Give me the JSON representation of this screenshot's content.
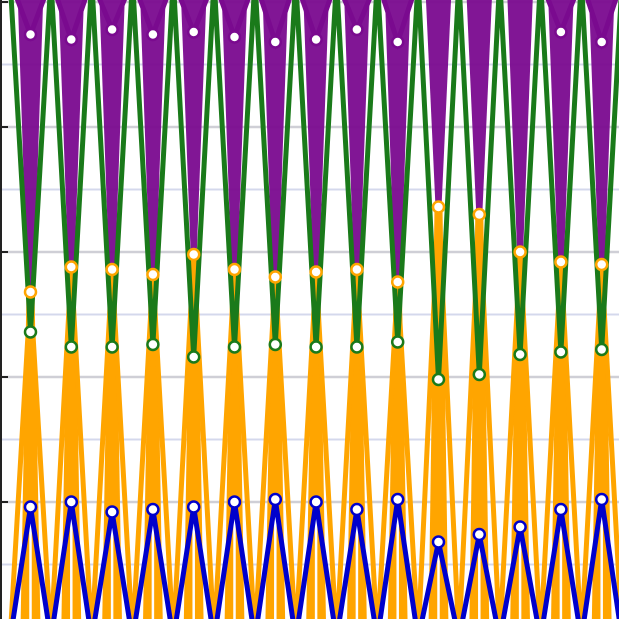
{
  "chart_data": {
    "type": "line",
    "title": "",
    "xlabel": "",
    "ylabel": "",
    "grid": true,
    "x": [
      1,
      2,
      3,
      4,
      5,
      6,
      7,
      8,
      9,
      10,
      11,
      12,
      13,
      14,
      15
    ],
    "ylim": [
      0,
      25
    ],
    "series": [
      {
        "color": "#7a0a8f",
        "values": [
          23.7,
          23.5,
          23.9,
          23.7,
          23.8,
          23.6,
          23.4,
          23.5,
          23.9,
          23.4,
          25.5,
          25.5,
          25.5,
          23.8,
          23.4
        ]
      },
      {
        "color": "#ffa500",
        "values": [
          13.4,
          14.4,
          14.3,
          14.1,
          14.9,
          14.3,
          14.0,
          14.2,
          14.3,
          13.8,
          16.8,
          16.5,
          15.0,
          14.6,
          14.5
        ]
      },
      {
        "color": "#1a7a1a",
        "values": [
          11.8,
          11.2,
          11.2,
          11.3,
          10.8,
          11.2,
          11.3,
          11.2,
          11.2,
          11.4,
          9.9,
          10.1,
          10.9,
          11.0,
          11.1
        ]
      },
      {
        "color": "#0000cc",
        "values": [
          4.8,
          5.0,
          4.6,
          4.7,
          4.8,
          5.0,
          5.1,
          5.0,
          4.7,
          5.1,
          3.4,
          3.7,
          4.0,
          4.7,
          5.1
        ]
      }
    ]
  }
}
